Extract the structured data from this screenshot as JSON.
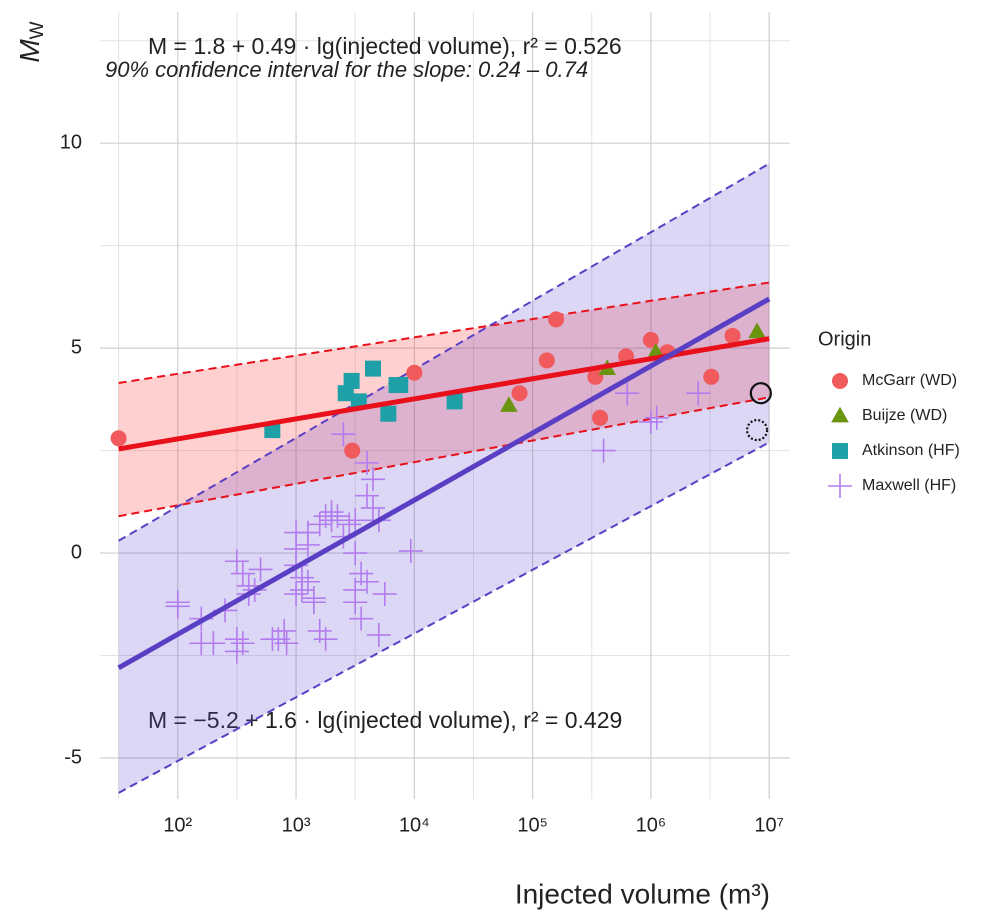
{
  "chart_data": {
    "type": "scatter",
    "x_label": "Injected volume (m³)",
    "y_label": "M",
    "y_label_sub": "W",
    "log_x": true,
    "grid": true,
    "minor_grid": true,
    "xlim": [
      22,
      15000000
    ],
    "ylim": [
      -6,
      13.2
    ],
    "xticks": [
      {
        "value": 100,
        "label": "10²"
      },
      {
        "value": 1000,
        "label": "10³"
      },
      {
        "value": 10000,
        "label": "10⁴"
      },
      {
        "value": 100000,
        "label": "10⁵"
      },
      {
        "value": 1000000,
        "label": "10⁶"
      },
      {
        "value": 10000000,
        "label": "10⁷"
      }
    ],
    "yticks": [
      -5,
      0,
      5,
      10
    ],
    "legend_title": "Origin",
    "legend_position": "right",
    "annotations": [
      "M = 1.8 + 0.49 · lg(injected volume),   r² = 0.526",
      "90% confidence interval for the slope: 0.24 – 0.74",
      "M = −5.2 + 1.6 · lg(injected volume),   r² = 0.429"
    ],
    "fits": [
      {
        "color": "#e8101a",
        "fill": "rgba(255,40,40,0.22)",
        "x": [
          31.6,
          10000000
        ],
        "values": [
          2.54,
          5.23
        ],
        "lower": [
          0.9,
          3.8
        ],
        "upper": [
          4.15,
          6.6
        ]
      },
      {
        "color": "#5a3fc4",
        "fill": "rgba(95,75,205,0.22)",
        "x": [
          31.6,
          10000000
        ],
        "values": [
          -2.8,
          6.2
        ],
        "lower": [
          -5.85,
          2.7
        ],
        "upper": [
          0.3,
          9.5
        ]
      }
    ],
    "series": [
      {
        "name": "McGarr (WD)",
        "shape": "circle",
        "color": "#f05a5c",
        "x": [
          31.6,
          2985,
          10000,
          77600,
          132000,
          158000,
          339000,
          372000,
          617000,
          1000000,
          1380000,
          3240000,
          4900000
        ],
        "values": [
          2.8,
          2.5,
          4.4,
          3.9,
          4.7,
          5.7,
          4.3,
          3.3,
          4.8,
          5.2,
          4.9,
          4.3,
          5.3
        ]
      },
      {
        "name": "Buijze (WD)",
        "shape": "triangle",
        "color": "#6b940f",
        "x": [
          63000,
          427000,
          1100000,
          7900000
        ],
        "values": [
          3.6,
          4.5,
          4.9,
          5.4
        ]
      },
      {
        "name": "Atkinson (HF)",
        "shape": "square",
        "color": "#1ea0a6",
        "x": [
          630,
          2630,
          2950,
          3390,
          4470,
          6030,
          7080,
          7590,
          21900
        ],
        "values": [
          3.0,
          3.9,
          4.2,
          3.7,
          4.5,
          3.4,
          4.1,
          4.1,
          3.7
        ]
      },
      {
        "name": "Maxwell (HF)",
        "shape": "cross",
        "color": "#b27cf0",
        "x": [
          100,
          100,
          158,
          158,
          200,
          251,
          316,
          316,
          355,
          316,
          355,
          398,
          398,
          447,
          501,
          631,
          708,
          794,
          832,
          1000,
          1000,
          1000,
          1000,
          1122,
          1122,
          1259,
          1259,
          1259,
          1413,
          1413,
          1585,
          1585,
          1778,
          1778,
          1995,
          1995,
          2239,
          2512,
          2512,
          2818,
          3162,
          3162,
          3162,
          3162,
          3548,
          3548,
          3981,
          3981,
          3981,
          4467,
          4467,
          5012,
          5623,
          5012,
          9333,
          398107,
          630957,
          1122018,
          1000000,
          2511886
        ],
        "values": [
          -1.3,
          -1.2,
          -1.6,
          -2.2,
          -2.2,
          -1.4,
          -2.1,
          -2.4,
          -2.2,
          -0.2,
          -0.5,
          -0.8,
          -1.0,
          -0.9,
          -0.4,
          -2.1,
          -2.1,
          -1.9,
          -2.2,
          -1.0,
          0.5,
          0.1,
          -0.3,
          -0.6,
          -0.9,
          -0.7,
          0.2,
          0.5,
          -1.1,
          -1.2,
          0.7,
          -1.9,
          -2.1,
          0.9,
          1.0,
          0.8,
          0.9,
          2.9,
          0.4,
          0.7,
          0.8,
          -0.9,
          -1.2,
          0.0,
          -0.5,
          -1.6,
          2.2,
          1.4,
          -0.7,
          1.8,
          1.1,
          -2.0,
          -1.0,
          0.8,
          0.05,
          2.5,
          3.9,
          3.3,
          3.2,
          3.9
        ]
      }
    ],
    "markers": [
      {
        "x": 8500000,
        "y": 3.9,
        "style": "solid"
      },
      {
        "x": 7900000,
        "y": 3.0,
        "style": "dotted"
      }
    ]
  }
}
